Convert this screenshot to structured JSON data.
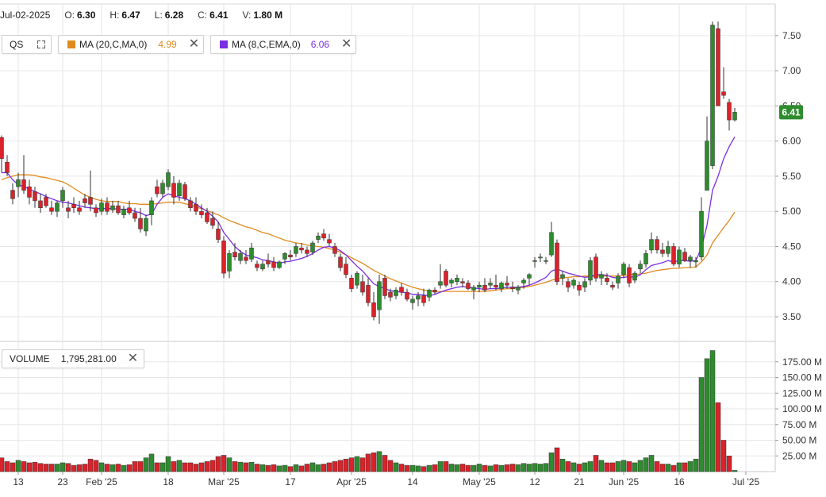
{
  "header": {
    "date": "Jul-02-2025",
    "open_label": "O:",
    "open": "6.30",
    "high_label": "H:",
    "high": "6.47",
    "low_label": "L:",
    "low": "6.28",
    "close_label": "C:",
    "close": "6.41",
    "volume_label": "V:",
    "volume": "1.80 M"
  },
  "legend": {
    "symbol": "QS",
    "ma20_label": "MA (20,C,MA,0)",
    "ma20_value": "4.99",
    "ma20_color": "#e08a1e",
    "ma8_label": "MA (8,C,EMA,0)",
    "ma8_value": "6.06",
    "ma8_color": "#7a2ee6",
    "volume_label": "VOLUME",
    "volume_value": "1,795,281.00",
    "close_icon": "close-icon",
    "expand_icon": "expand-icon"
  },
  "price_tag": "6.41",
  "colors": {
    "up": "#2e8b2e",
    "down": "#d9222a",
    "grid": "#e6e6e6",
    "tag": "#2e8b2e"
  },
  "chart_data": {
    "type": "candlestick",
    "price_axis": {
      "ticks": [
        "3.50",
        "4.00",
        "4.50",
        "5.00",
        "5.50",
        "6.00",
        "6.50",
        "7.00",
        "7.50"
      ],
      "range": [
        3.15,
        7.95
      ]
    },
    "volume_axis": {
      "ticks": [
        "25.00 M",
        "50.00 M",
        "75.00 M",
        "100.00 M",
        "125.00 M",
        "150.00 M",
        "175.00 M"
      ],
      "range": [
        0,
        200
      ]
    },
    "x_ticks": [
      "13",
      "23",
      "Feb '25",
      "18",
      "Mar '25",
      "17",
      "Apr '25",
      "14",
      "May '25",
      "12",
      "21",
      "Jun '25",
      "16",
      "Jul '25"
    ],
    "x_tick_index": [
      3,
      11,
      18,
      30,
      40,
      52,
      63,
      74,
      86,
      96,
      104,
      112,
      122,
      134
    ],
    "candles": [
      [
        6.05,
        6.08,
        5.55,
        5.75,
        22
      ],
      [
        5.7,
        5.8,
        5.5,
        5.55,
        16
      ],
      [
        5.3,
        5.4,
        5.1,
        5.18,
        14
      ],
      [
        5.35,
        5.55,
        5.2,
        5.45,
        18
      ],
      [
        5.45,
        5.8,
        5.25,
        5.3,
        16
      ],
      [
        5.35,
        5.45,
        5.1,
        5.2,
        14
      ],
      [
        5.28,
        5.35,
        5.05,
        5.15,
        15
      ],
      [
        5.15,
        5.25,
        4.98,
        5.05,
        13
      ],
      [
        5.2,
        5.25,
        5.05,
        5.08,
        12
      ],
      [
        5.05,
        5.15,
        4.95,
        5.0,
        12
      ],
      [
        5.0,
        5.15,
        4.92,
        5.12,
        12
      ],
      [
        5.15,
        5.35,
        5.05,
        5.3,
        14
      ],
      [
        5.05,
        5.15,
        4.9,
        5.0,
        13
      ],
      [
        5.1,
        5.2,
        4.98,
        5.05,
        10
      ],
      [
        5.05,
        5.15,
        4.95,
        5.0,
        11
      ],
      [
        5.18,
        5.25,
        5.05,
        5.12,
        12
      ],
      [
        5.2,
        5.58,
        5.0,
        5.1,
        20
      ],
      [
        5.05,
        5.1,
        4.92,
        4.98,
        18
      ],
      [
        5.0,
        5.18,
        4.95,
        5.12,
        14
      ],
      [
        5.12,
        5.2,
        4.95,
        5.0,
        12
      ],
      [
        5.02,
        5.15,
        4.98,
        5.08,
        11
      ],
      [
        5.08,
        5.15,
        4.95,
        4.98,
        12
      ],
      [
        4.95,
        5.08,
        4.9,
        5.03,
        10
      ],
      [
        5.05,
        5.15,
        4.95,
        4.98,
        11
      ],
      [
        4.98,
        5.05,
        4.85,
        4.9,
        16
      ],
      [
        4.9,
        5.05,
        4.7,
        4.75,
        16
      ],
      [
        4.72,
        4.95,
        4.65,
        4.9,
        22
      ],
      [
        4.95,
        5.2,
        4.8,
        5.15,
        28
      ],
      [
        5.35,
        5.45,
        5.2,
        5.25,
        14
      ],
      [
        5.25,
        5.45,
        5.2,
        5.4,
        14
      ],
      [
        5.35,
        5.6,
        5.3,
        5.55,
        24
      ],
      [
        5.4,
        5.5,
        5.1,
        5.2,
        16
      ],
      [
        5.22,
        5.45,
        5.15,
        5.4,
        18
      ],
      [
        5.38,
        5.42,
        5.15,
        5.18,
        14
      ],
      [
        5.15,
        5.2,
        5.0,
        5.05,
        14
      ],
      [
        5.1,
        5.2,
        4.95,
        5.0,
        12
      ],
      [
        5.0,
        5.1,
        4.9,
        4.95,
        14
      ],
      [
        4.98,
        5.05,
        4.82,
        4.85,
        16
      ],
      [
        4.9,
        5.0,
        4.75,
        4.8,
        18
      ],
      [
        4.75,
        4.85,
        4.55,
        4.6,
        24
      ],
      [
        4.58,
        4.65,
        4.05,
        4.12,
        26
      ],
      [
        4.15,
        4.45,
        4.05,
        4.4,
        22
      ],
      [
        4.42,
        4.55,
        4.3,
        4.35,
        16
      ],
      [
        4.3,
        4.45,
        4.25,
        4.4,
        15
      ],
      [
        4.35,
        4.45,
        4.25,
        4.3,
        14
      ],
      [
        4.32,
        4.55,
        4.28,
        4.48,
        15
      ],
      [
        4.25,
        4.3,
        4.15,
        4.2,
        12
      ],
      [
        4.18,
        4.3,
        4.15,
        4.25,
        11
      ],
      [
        4.3,
        4.4,
        4.2,
        4.25,
        10
      ],
      [
        4.28,
        4.35,
        4.15,
        4.2,
        11
      ],
      [
        4.2,
        4.3,
        4.18,
        4.28,
        9
      ],
      [
        4.32,
        4.42,
        4.25,
        4.4,
        10
      ],
      [
        4.38,
        4.45,
        4.3,
        4.35,
        8
      ],
      [
        4.4,
        4.55,
        4.35,
        4.5,
        11
      ],
      [
        4.48,
        4.55,
        4.4,
        4.45,
        9
      ],
      [
        4.45,
        4.5,
        4.35,
        4.4,
        12
      ],
      [
        4.42,
        4.58,
        4.38,
        4.55,
        14
      ],
      [
        4.6,
        4.7,
        4.55,
        4.65,
        11
      ],
      [
        4.68,
        4.75,
        4.58,
        4.62,
        12
      ],
      [
        4.6,
        4.68,
        4.5,
        4.55,
        14
      ],
      [
        4.5,
        4.55,
        4.35,
        4.4,
        16
      ],
      [
        4.35,
        4.4,
        4.15,
        4.2,
        18
      ],
      [
        4.25,
        4.35,
        4.05,
        4.1,
        20
      ],
      [
        4.05,
        4.1,
        3.85,
        3.9,
        22
      ],
      [
        3.95,
        4.15,
        3.9,
        4.12,
        24
      ],
      [
        4.0,
        4.1,
        3.8,
        3.85,
        22
      ],
      [
        3.95,
        4.05,
        3.65,
        3.7,
        28
      ],
      [
        3.7,
        3.85,
        3.45,
        3.5,
        30
      ],
      [
        3.6,
        4.1,
        3.4,
        4.0,
        32
      ],
      [
        4.05,
        4.1,
        3.75,
        3.8,
        26
      ],
      [
        3.85,
        3.9,
        3.72,
        3.78,
        18
      ],
      [
        3.8,
        3.92,
        3.75,
        3.88,
        14
      ],
      [
        3.92,
        3.98,
        3.8,
        3.85,
        12
      ],
      [
        3.85,
        3.9,
        3.72,
        3.75,
        10
      ],
      [
        3.7,
        3.8,
        3.6,
        3.75,
        10
      ],
      [
        3.75,
        3.85,
        3.65,
        3.8,
        9
      ],
      [
        3.8,
        3.9,
        3.65,
        3.7,
        8
      ],
      [
        3.78,
        3.9,
        3.72,
        3.88,
        10
      ],
      [
        3.88,
        3.92,
        3.82,
        3.85,
        11
      ],
      [
        3.95,
        4.25,
        3.9,
        4.0,
        16
      ],
      [
        4.15,
        4.18,
        3.92,
        3.95,
        16
      ],
      [
        3.98,
        4.05,
        3.92,
        4.02,
        12
      ],
      [
        4.0,
        4.1,
        3.95,
        4.05,
        11
      ],
      [
        4.0,
        4.05,
        3.92,
        3.98,
        12
      ],
      [
        3.98,
        4.02,
        3.88,
        3.9,
        10
      ],
      [
        3.88,
        3.95,
        3.75,
        3.92,
        10
      ],
      [
        3.92,
        4.0,
        3.85,
        3.95,
        12
      ],
      [
        3.95,
        4.05,
        3.85,
        3.88,
        10
      ],
      [
        3.95,
        4.05,
        3.9,
        3.98,
        9
      ],
      [
        3.95,
        4.1,
        3.88,
        3.92,
        11
      ],
      [
        3.9,
        4.0,
        3.85,
        3.98,
        10
      ],
      [
        3.98,
        4.08,
        3.9,
        3.95,
        11
      ],
      [
        3.92,
        4.0,
        3.85,
        3.9,
        12
      ],
      [
        3.88,
        3.95,
        3.82,
        3.92,
        11
      ],
      [
        3.98,
        4.05,
        3.9,
        4.02,
        13
      ],
      [
        4.05,
        4.12,
        3.95,
        4.1,
        12
      ],
      [
        4.3,
        4.35,
        4.2,
        4.3,
        13
      ],
      [
        4.35,
        4.4,
        4.28,
        4.35,
        12
      ],
      [
        4.3,
        4.35,
        4.25,
        4.3,
        13
      ],
      [
        4.38,
        4.85,
        4.35,
        4.7,
        30
      ],
      [
        4.55,
        4.6,
        3.95,
        4.0,
        38
      ],
      [
        4.05,
        4.15,
        3.95,
        4.1,
        20
      ],
      [
        4.0,
        4.05,
        3.85,
        3.92,
        16
      ],
      [
        3.95,
        4.05,
        3.9,
        4.02,
        14
      ],
      [
        3.95,
        4.0,
        3.8,
        3.88,
        12
      ],
      [
        3.92,
        4.05,
        3.85,
        4.0,
        14
      ],
      [
        4.02,
        4.35,
        3.95,
        4.3,
        16
      ],
      [
        4.35,
        4.4,
        4.0,
        4.05,
        26
      ],
      [
        4.05,
        4.15,
        3.95,
        4.1,
        18
      ],
      [
        4.05,
        4.12,
        3.95,
        4.0,
        14
      ],
      [
        3.95,
        4.0,
        3.88,
        3.92,
        14
      ],
      [
        3.98,
        4.12,
        3.9,
        4.08,
        16
      ],
      [
        4.1,
        4.28,
        4.05,
        4.25,
        18
      ],
      [
        4.2,
        4.25,
        3.92,
        3.98,
        16
      ],
      [
        4.02,
        4.15,
        3.98,
        4.12,
        14
      ],
      [
        4.18,
        4.3,
        4.12,
        4.25,
        18
      ],
      [
        4.25,
        4.45,
        4.2,
        4.4,
        22
      ],
      [
        4.45,
        4.7,
        4.4,
        4.6,
        26
      ],
      [
        4.6,
        4.65,
        4.4,
        4.45,
        16
      ],
      [
        4.45,
        4.55,
        4.35,
        4.4,
        12
      ],
      [
        4.4,
        4.58,
        4.35,
        4.5,
        12
      ],
      [
        4.5,
        4.55,
        4.22,
        4.25,
        10
      ],
      [
        4.25,
        4.5,
        4.2,
        4.45,
        14
      ],
      [
        4.42,
        4.48,
        4.28,
        4.3,
        14
      ],
      [
        4.3,
        4.38,
        4.2,
        4.35,
        16
      ],
      [
        4.28,
        4.35,
        4.2,
        4.3,
        20
      ],
      [
        4.35,
        5.2,
        4.3,
        5.0,
        150
      ],
      [
        5.3,
        6.35,
        5.3,
        6.0,
        180
      ],
      [
        5.65,
        7.7,
        5.6,
        7.65,
        193
      ],
      [
        7.6,
        7.7,
        6.5,
        6.5,
        110
      ],
      [
        6.7,
        7.05,
        6.6,
        6.65,
        50
      ],
      [
        6.55,
        6.6,
        6.15,
        6.3,
        25
      ],
      [
        6.3,
        6.47,
        6.28,
        6.41,
        2
      ]
    ],
    "ma20": [
      5.45,
      5.48,
      5.5,
      5.52,
      5.52,
      5.52,
      5.51,
      5.49,
      5.48,
      5.46,
      5.44,
      5.42,
      5.38,
      5.33,
      5.28,
      5.23,
      5.2,
      5.17,
      5.15,
      5.14,
      5.14,
      5.14,
      5.12,
      5.11,
      5.11,
      5.1,
      5.1,
      5.1,
      5.11,
      5.12,
      5.13,
      5.13,
      5.13,
      5.11,
      5.09,
      5.06,
      5.04,
      5.01,
      4.98,
      4.95,
      4.91,
      4.87,
      4.84,
      4.81,
      4.78,
      4.76,
      4.73,
      4.7,
      4.68,
      4.65,
      4.62,
      4.59,
      4.57,
      4.55,
      4.54,
      4.52,
      4.51,
      4.5,
      4.49,
      4.47,
      4.45,
      4.42,
      4.38,
      4.34,
      4.3,
      4.26,
      4.21,
      4.16,
      4.12,
      4.08,
      4.04,
      4.01,
      3.98,
      3.95,
      3.92,
      3.9,
      3.88,
      3.87,
      3.86,
      3.86,
      3.86,
      3.86,
      3.86,
      3.86,
      3.86,
      3.86,
      3.86,
      3.86,
      3.87,
      3.88,
      3.89,
      3.9,
      3.9,
      3.91,
      3.92,
      3.93,
      3.95,
      3.97,
      3.99,
      4.02,
      4.04,
      4.05,
      4.06,
      4.07,
      4.07,
      4.08,
      4.08,
      4.08,
      4.08,
      4.08,
      4.08,
      4.08,
      4.09,
      4.1,
      4.1,
      4.11,
      4.12,
      4.14,
      4.16,
      4.17,
      4.18,
      4.19,
      4.19,
      4.2,
      4.2,
      4.21,
      4.28,
      4.38,
      4.55,
      4.66,
      4.77,
      4.87,
      4.99
    ],
    "ma8": [
      5.55,
      5.55,
      5.45,
      5.38,
      5.35,
      5.32,
      5.28,
      5.25,
      5.21,
      5.18,
      5.15,
      5.13,
      5.12,
      5.1,
      5.08,
      5.06,
      5.05,
      5.04,
      5.04,
      5.04,
      5.04,
      5.03,
      5.03,
      5.03,
      5.0,
      4.98,
      4.94,
      4.96,
      5.1,
      5.2,
      5.25,
      5.22,
      5.2,
      5.18,
      5.15,
      5.1,
      5.05,
      5.0,
      4.93,
      4.85,
      4.7,
      4.6,
      4.5,
      4.43,
      4.38,
      4.36,
      4.34,
      4.31,
      4.3,
      4.28,
      4.26,
      4.28,
      4.29,
      4.31,
      4.33,
      4.36,
      4.4,
      4.45,
      4.49,
      4.5,
      4.48,
      4.44,
      4.38,
      4.3,
      4.22,
      4.15,
      4.06,
      3.97,
      3.93,
      3.9,
      3.87,
      3.86,
      3.85,
      3.84,
      3.82,
      3.82,
      3.81,
      3.8,
      3.82,
      3.85,
      3.88,
      3.9,
      3.92,
      3.93,
      3.92,
      3.91,
      3.9,
      3.89,
      3.9,
      3.9,
      3.91,
      3.92,
      3.92,
      3.92,
      3.93,
      3.95,
      3.98,
      4.02,
      4.06,
      4.15,
      4.18,
      4.15,
      4.12,
      4.1,
      4.08,
      4.06,
      4.07,
      4.1,
      4.1,
      4.09,
      4.06,
      4.05,
      4.06,
      4.07,
      4.06,
      4.1,
      4.17,
      4.23,
      4.25,
      4.27,
      4.3,
      4.28,
      4.3,
      4.3,
      4.29,
      4.3,
      4.48,
      4.8,
      5.3,
      5.5,
      5.75,
      5.92,
      6.06
    ]
  }
}
